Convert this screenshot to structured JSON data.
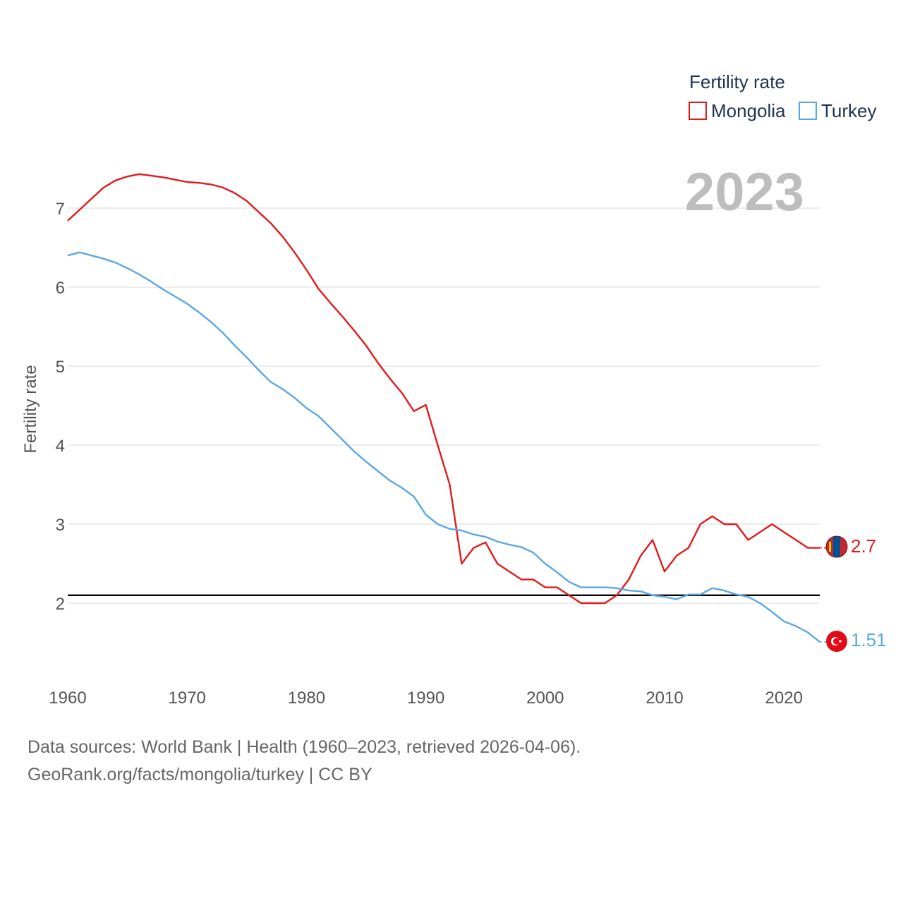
{
  "chart_data": {
    "type": "line",
    "title": "",
    "xlabel": "",
    "ylabel": "Fertility rate",
    "year_badge": "2023",
    "legend_title": "Fertility rate",
    "legend_position": "top-right",
    "xlim": [
      1960,
      2023
    ],
    "ylim": [
      1.2,
      7.6
    ],
    "x_ticks": [
      "1960",
      "1970",
      "1980",
      "1990",
      "2000",
      "2010",
      "2020"
    ],
    "y_ticks": [
      "2",
      "3",
      "4",
      "5",
      "6",
      "7"
    ],
    "reference_line": {
      "value": 2.1,
      "color": "#000000"
    },
    "x": [
      1960,
      1961,
      1962,
      1963,
      1964,
      1965,
      1966,
      1967,
      1968,
      1969,
      1970,
      1971,
      1972,
      1973,
      1974,
      1975,
      1976,
      1977,
      1978,
      1979,
      1980,
      1981,
      1982,
      1983,
      1984,
      1985,
      1986,
      1987,
      1988,
      1989,
      1990,
      1991,
      1992,
      1993,
      1994,
      1995,
      1996,
      1997,
      1998,
      1999,
      2000,
      2001,
      2002,
      2003,
      2004,
      2005,
      2006,
      2007,
      2008,
      2009,
      2010,
      2011,
      2012,
      2013,
      2014,
      2015,
      2016,
      2017,
      2018,
      2019,
      2020,
      2021,
      2022,
      2023
    ],
    "series": [
      {
        "name": "Mongolia",
        "color": "#e31a1c",
        "end_label": "2.7",
        "values": [
          6.84,
          6.98,
          7.12,
          7.26,
          7.35,
          7.4,
          7.43,
          7.41,
          7.39,
          7.36,
          7.33,
          7.32,
          7.3,
          7.26,
          7.19,
          7.09,
          6.95,
          6.81,
          6.64,
          6.44,
          6.22,
          5.98,
          5.8,
          5.63,
          5.45,
          5.26,
          5.04,
          4.84,
          4.66,
          4.43,
          4.51,
          4.0,
          3.5,
          2.5,
          2.7,
          2.77,
          2.5,
          2.4,
          2.3,
          2.3,
          2.2,
          2.2,
          2.1,
          2.0,
          2.0,
          2.0,
          2.1,
          2.3,
          2.6,
          2.8,
          2.4,
          2.6,
          2.7,
          3.0,
          3.1,
          3.0,
          3.0,
          2.8,
          2.9,
          3.0,
          2.9,
          2.8,
          2.7,
          2.7
        ]
      },
      {
        "name": "Turkey",
        "color": "#5ba7e6",
        "end_label": "1.51",
        "values": [
          6.4,
          6.44,
          6.4,
          6.36,
          6.31,
          6.24,
          6.16,
          6.07,
          5.97,
          5.88,
          5.79,
          5.68,
          5.56,
          5.42,
          5.26,
          5.11,
          4.95,
          4.8,
          4.71,
          4.6,
          4.47,
          4.37,
          4.22,
          4.07,
          3.92,
          3.79,
          3.67,
          3.55,
          3.46,
          3.35,
          3.12,
          3.0,
          2.94,
          2.92,
          2.87,
          2.84,
          2.78,
          2.74,
          2.71,
          2.64,
          2.5,
          2.39,
          2.27,
          2.2,
          2.2,
          2.2,
          2.19,
          2.16,
          2.15,
          2.1,
          2.08,
          2.05,
          2.11,
          2.11,
          2.19,
          2.16,
          2.11,
          2.08,
          2.0,
          1.89,
          1.77,
          1.71,
          1.63,
          1.51
        ]
      }
    ]
  },
  "footer": {
    "line1": "Data sources: World Bank | Health (1960–2023, retrieved 2026-04-06).",
    "line2": "GeoRank.org/facts/mongolia/turkey | CC BY"
  }
}
